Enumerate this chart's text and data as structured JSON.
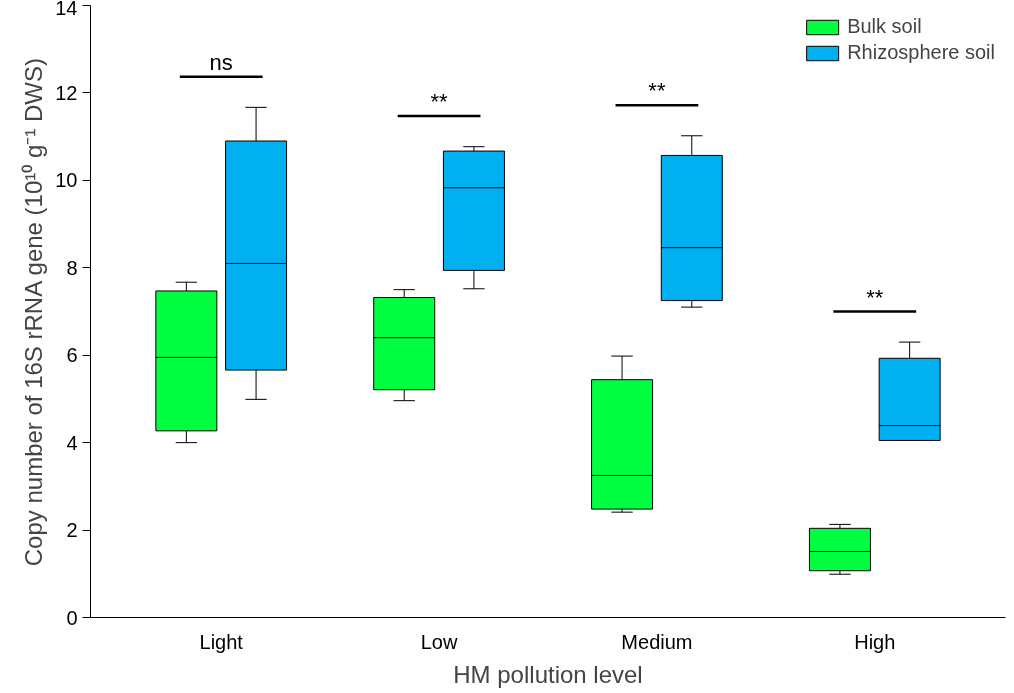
{
  "chart_data": {
    "type": "box",
    "xlabel": "HM pollution level",
    "ylabel": "Copy number of 16S rRNA gene (10¹⁰ g⁻¹ DWS)",
    "categories": [
      "Light",
      "Low",
      "Medium",
      "High"
    ],
    "ylim": [
      0,
      14
    ],
    "yticks": [
      0,
      2,
      4,
      6,
      8,
      10,
      12,
      14
    ],
    "grid": false,
    "legend": "top right",
    "series": [
      {
        "name": "Bulk soil",
        "color": "#00ff40",
        "boxes": [
          {
            "low": 4.0,
            "q1": 4.27,
            "median": 5.95,
            "q3": 7.47,
            "high": 7.67
          },
          {
            "low": 4.96,
            "q1": 5.21,
            "median": 6.4,
            "q3": 7.32,
            "high": 7.5
          },
          {
            "low": 2.41,
            "q1": 2.48,
            "median": 3.25,
            "q3": 5.44,
            "high": 5.98
          },
          {
            "low": 0.99,
            "q1": 1.07,
            "median": 1.51,
            "q3": 2.04,
            "high": 2.13
          }
        ]
      },
      {
        "name": "Rhizosphere soil",
        "color": "#00b0f0",
        "boxes": [
          {
            "low": 4.99,
            "q1": 5.66,
            "median": 8.1,
            "q3": 10.9,
            "high": 11.67
          },
          {
            "low": 7.52,
            "q1": 7.94,
            "median": 9.83,
            "q3": 10.67,
            "high": 10.77
          },
          {
            "low": 7.1,
            "q1": 7.25,
            "median": 8.46,
            "q3": 10.57,
            "high": 11.02
          },
          {
            "low": 4.05,
            "q1": 4.05,
            "median": 4.39,
            "q3": 5.93,
            "high": 6.3
          }
        ]
      }
    ],
    "annotations": [
      "ns",
      "**",
      "**",
      "**"
    ]
  }
}
